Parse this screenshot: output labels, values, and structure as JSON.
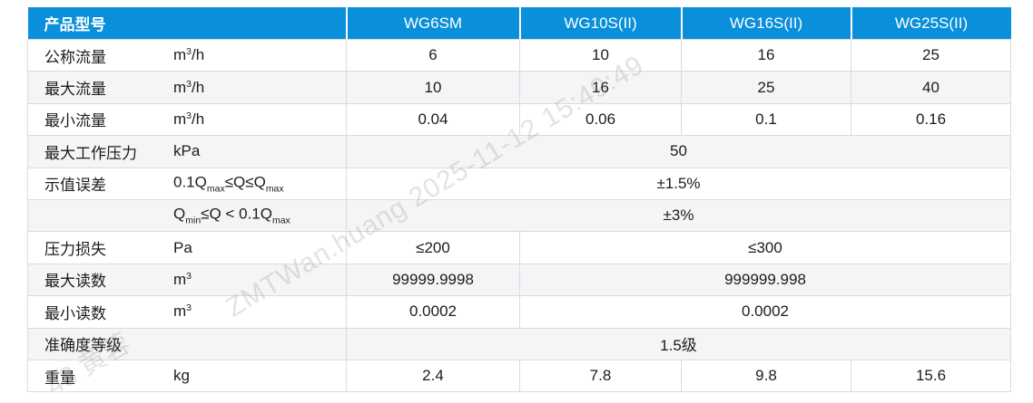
{
  "colors": {
    "header_bg": "#0a8fda",
    "header_text": "#ffffff",
    "row_alt_bg": "#f4f5f6",
    "border": "#d9dbde",
    "text": "#1b1c1e"
  },
  "table": {
    "header": {
      "label": "产品型号",
      "models": [
        "WG6SM",
        "WG10S(II)",
        "WG16S(II)",
        "WG25S(II)"
      ]
    },
    "rows": [
      {
        "label": "公称流量",
        "unit": [
          {
            "v": "m"
          },
          {
            "v": "3",
            "sup": true
          },
          {
            "v": "/h"
          }
        ],
        "cells": [
          {
            "t": "6"
          },
          {
            "t": "10"
          },
          {
            "t": "16"
          },
          {
            "t": "25"
          }
        ]
      },
      {
        "label": "最大流量",
        "unit": [
          {
            "v": "m"
          },
          {
            "v": "3",
            "sup": true
          },
          {
            "v": "/h"
          }
        ],
        "cells": [
          {
            "t": "10"
          },
          {
            "t": "16"
          },
          {
            "t": "25"
          },
          {
            "t": "40"
          }
        ]
      },
      {
        "label": "最小流量",
        "unit": [
          {
            "v": "m"
          },
          {
            "v": "3",
            "sup": true
          },
          {
            "v": "/h"
          }
        ],
        "cells": [
          {
            "t": "0.04"
          },
          {
            "t": "0.06"
          },
          {
            "t": "0.1"
          },
          {
            "t": "0.16"
          }
        ]
      },
      {
        "label": "最大工作压力",
        "unit": [
          {
            "v": "kPa"
          }
        ],
        "cells": [
          {
            "t": "50",
            "span": 4
          }
        ]
      },
      {
        "label": "示值误差",
        "unit": [
          {
            "v": "0.1Q"
          },
          {
            "v": "max",
            "sub": true
          },
          {
            "v": "≤Q≤Q"
          },
          {
            "v": "max",
            "sub": true
          }
        ],
        "cells": [
          {
            "t": "±1.5%",
            "span": 4
          }
        ]
      },
      {
        "label": "",
        "unit": [
          {
            "v": "Q"
          },
          {
            "v": "min",
            "sub": true
          },
          {
            "v": "≤Q < 0.1Q"
          },
          {
            "v": "max",
            "sub": true
          }
        ],
        "cells": [
          {
            "t": "±3%",
            "span": 4
          }
        ]
      },
      {
        "label": "压力损失",
        "unit": [
          {
            "v": "Pa"
          }
        ],
        "cells": [
          {
            "t": "≤200"
          },
          {
            "t": "≤300",
            "span": 3
          }
        ]
      },
      {
        "label": "最大读数",
        "unit": [
          {
            "v": "m"
          },
          {
            "v": "3",
            "sup": true
          }
        ],
        "cells": [
          {
            "t": "99999.9998"
          },
          {
            "t": "999999.998",
            "span": 3
          }
        ]
      },
      {
        "label": "最小读数",
        "unit": [
          {
            "v": "m"
          },
          {
            "v": "3",
            "sup": true
          }
        ],
        "cells": [
          {
            "t": "0.0002"
          },
          {
            "t": "0.0002",
            "span": 3
          }
        ]
      },
      {
        "label": "准确度等级",
        "unit": [],
        "cells": [
          {
            "t": "1.5级",
            "span": 4
          }
        ]
      },
      {
        "label": "重量",
        "unit": [
          {
            "v": "kg"
          }
        ],
        "cells": [
          {
            "t": "2.4"
          },
          {
            "t": "7.8"
          },
          {
            "t": "9.8"
          },
          {
            "t": "15.6"
          }
        ]
      }
    ]
  },
  "watermark": {
    "fragments": [
      {
        "text": "43 黄蓉"
      },
      {
        "text": "ZMTWan.huang 2025-11-12 15:49:49"
      }
    ]
  }
}
